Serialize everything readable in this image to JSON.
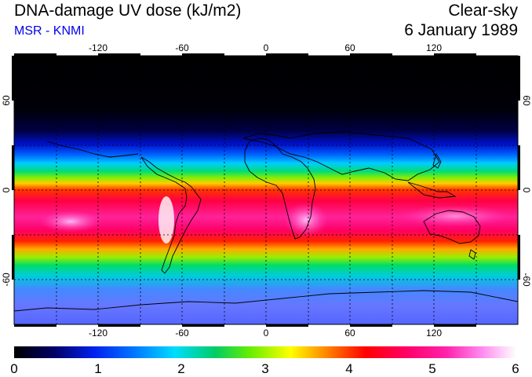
{
  "header": {
    "title": "DNA-damage UV dose (kJ/m2)",
    "source": "MSR - KNMI",
    "sky": "Clear-sky",
    "date": "6 January 1989"
  },
  "map": {
    "longitude_ticks": [
      "-120",
      "-60",
      "0",
      "60",
      "120"
    ],
    "latitude_ticks_left": [
      "60",
      "0",
      "-60"
    ],
    "latitude_ticks_right": [
      "60",
      "0",
      "-60"
    ],
    "longitude_values": [
      -120,
      -60,
      0,
      60,
      120
    ],
    "latitude_values": [
      60,
      0,
      -60
    ],
    "lon_range": [
      -180,
      180
    ],
    "lat_range": [
      -90,
      90
    ],
    "grid_spacing_deg": 30
  },
  "colorbar": {
    "labels": [
      "0",
      "1",
      "2",
      "3",
      "4",
      "5",
      "6"
    ],
    "range": [
      0,
      6
    ],
    "colors": [
      "#000000",
      "#000088",
      "#0033ff",
      "#00ddff",
      "#00cc44",
      "#88ff00",
      "#ffff00",
      "#ff6600",
      "#ff0022",
      "#ff0099",
      "#ff66dd",
      "#ffffff"
    ]
  }
}
